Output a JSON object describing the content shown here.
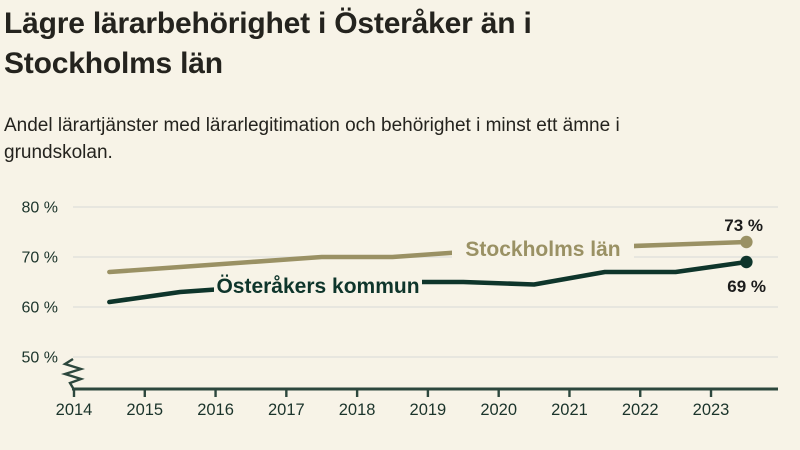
{
  "header": {
    "title_lines": [
      "Lägre lärarbehörighet i Österåker än i",
      "Stockholms län"
    ],
    "subtitle_lines": [
      "Andel lärartjänster med lärarlegitimation och behörighet i minst ett ämne i",
      "grundskolan."
    ]
  },
  "colors": {
    "background": "#f7f3e7",
    "grid": "#e7e6df",
    "axis": "#2c473d",
    "tick_text": "#1b342b",
    "end_label_text": "#1c1c1c",
    "series_stockholm": "#9a9164",
    "series_osteraker": "#0e352b"
  },
  "chart_data": {
    "type": "line",
    "x": [
      2014.5,
      2015.5,
      2016.5,
      2017.5,
      2018.5,
      2019.5,
      2020.5,
      2021.5,
      2022.5,
      2023.5
    ],
    "x_tick_labels": [
      "2014",
      "2015",
      "2016",
      "2017",
      "2018",
      "2019",
      "2020",
      "2021",
      "2022",
      "2023"
    ],
    "y_ticks": [
      {
        "value": 80,
        "label": "80 %"
      },
      {
        "value": 70,
        "label": "70 %"
      },
      {
        "value": 60,
        "label": "60 %"
      },
      {
        "value": 50,
        "label": "50 %"
      }
    ],
    "ylim": [
      50,
      82
    ],
    "axis_break": true,
    "grid": true,
    "legend_position": "inline-on-line",
    "series": [
      {
        "name": "Stockholms län",
        "color": "#9a9164",
        "values": [
          67,
          68,
          69,
          70,
          70,
          71,
          71.5,
          72,
          72.5,
          73
        ],
        "end_label": "73 %",
        "end_value": 73
      },
      {
        "name": "Österåkers kommun",
        "color": "#0e352b",
        "values": [
          61,
          63,
          64,
          64.5,
          65,
          65,
          64.5,
          67,
          67,
          69
        ],
        "end_label": "69 %",
        "end_value": 69
      }
    ]
  }
}
